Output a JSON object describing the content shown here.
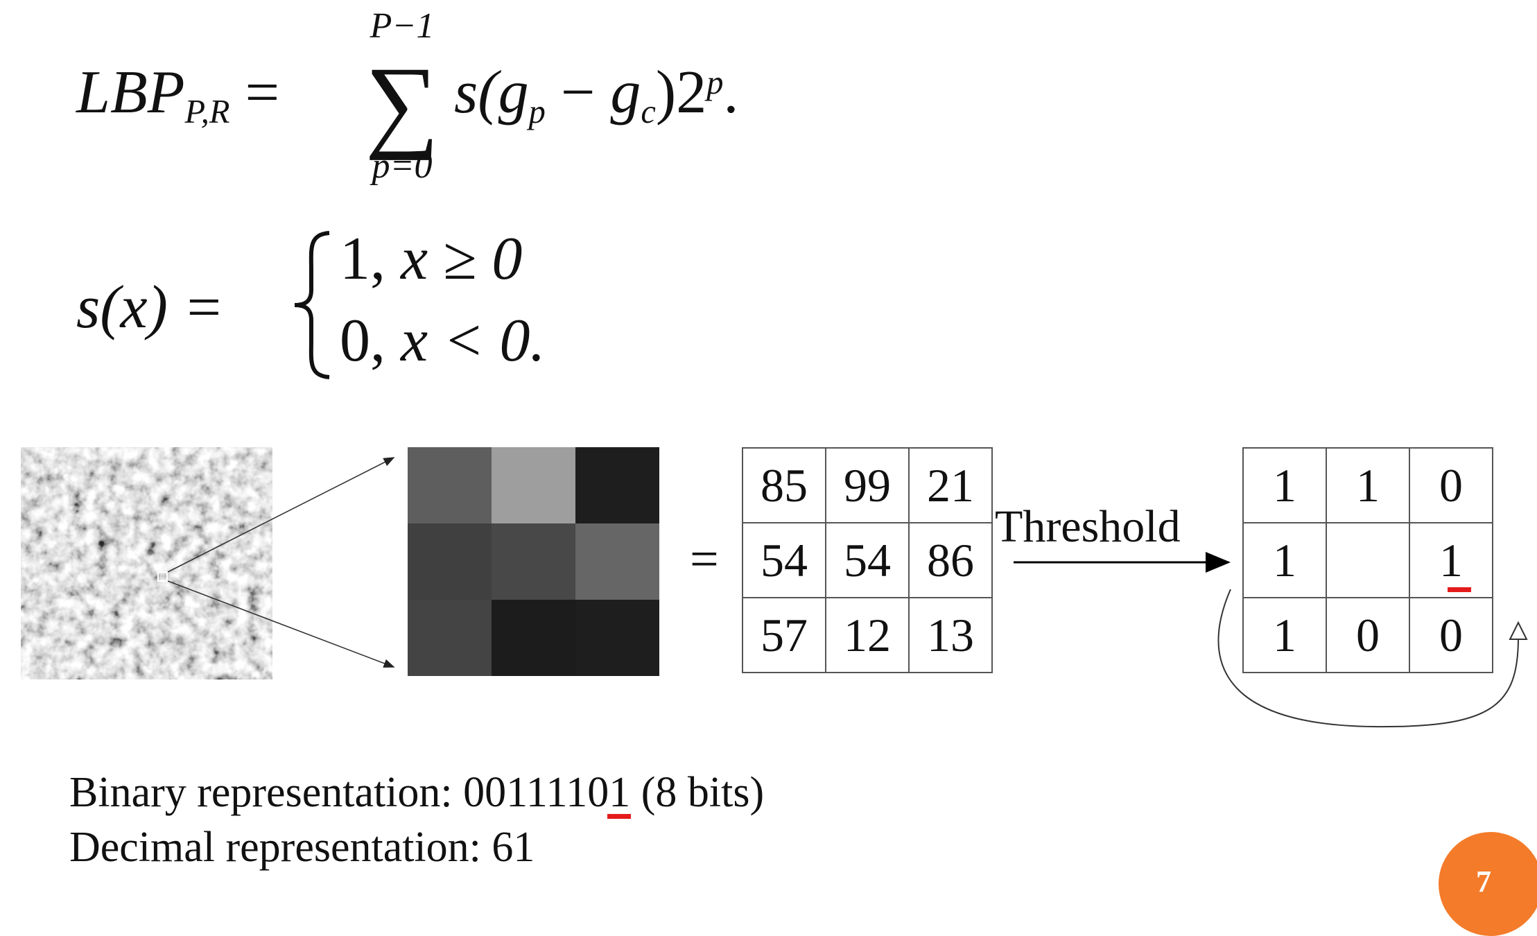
{
  "equation1": {
    "lhs_base": "LBP",
    "lhs_sub": "P,R",
    "equals": "=",
    "sum_upper": "P−1",
    "sum_symbol": "∑",
    "sum_lower": "p=0",
    "rhs_s": "s(",
    "rhs_gp": "g",
    "rhs_gp_sub": "p",
    "rhs_minus": " − ",
    "rhs_gc": "g",
    "rhs_gc_sub": "c",
    "rhs_close": ")2",
    "rhs_exp": "p",
    "rhs_end": "."
  },
  "equation2": {
    "lhs": "s(x) =",
    "brace": "{",
    "case1_value": "1, ",
    "case1_cond": "x ≥ 0",
    "case2_value": "0, ",
    "case2_cond": "x < 0."
  },
  "patch_colors": [
    "#5e5e5e",
    "#9e9e9e",
    "#1e1e1e",
    "#404040",
    "#484848",
    "#666666",
    "#444444",
    "#1c1c1c",
    "#1e1e1e"
  ],
  "equals_sign": "=",
  "pixel_values": [
    [
      "85",
      "99",
      "21"
    ],
    [
      "54",
      "54",
      "86"
    ],
    [
      "57",
      "12",
      "13"
    ]
  ],
  "threshold_label": "Threshold",
  "threshold_values": [
    [
      "1",
      "1",
      "0"
    ],
    [
      "1",
      "",
      "1"
    ],
    [
      "1",
      "0",
      "0"
    ]
  ],
  "binary_text_before": "Binary representation: 0011110",
  "binary_text_marked": "1",
  "binary_text_after": " (8 bits)",
  "decimal_text": "Decimal representation: 61",
  "page_number": "7",
  "colors": {
    "accent_red": "#e51b1b",
    "badge_orange": "#f47b2a"
  }
}
